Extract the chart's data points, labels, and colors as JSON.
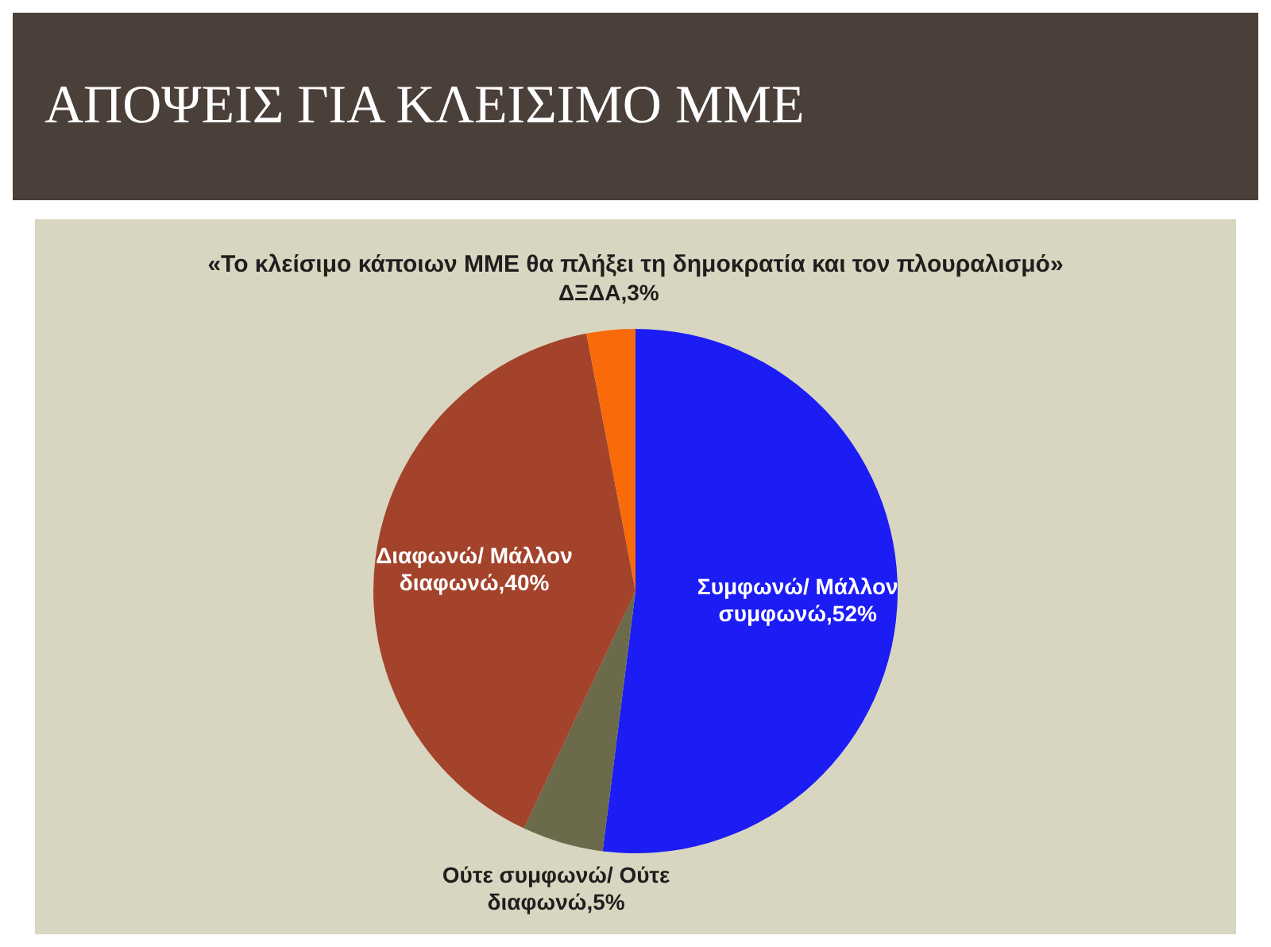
{
  "chart_data": {
    "type": "pie",
    "title": "ΑΠΟΨΕΙΣ ΓΙΑ ΚΛΕΙΣΙΜΟ ΜΜΕ",
    "subtitle": "«Το κλείσιμο κάποιων ΜΜΕ θα πλήξει τη δημοκρατία και τον πλουραλισμό»",
    "categories": [
      "Συμφωνώ/ Μάλλον συμφωνώ",
      "Ούτε συμφωνώ/ Ούτε διαφωνώ",
      "Διαφωνώ/ Μάλλον διαφωνώ",
      "ΔΞΔΑ"
    ],
    "values": [
      52,
      5,
      40,
      3
    ],
    "value_labels": [
      "52%",
      "5%",
      "40%",
      "3%"
    ],
    "colors": [
      "#1c1cf5",
      "#6b6b4c",
      "#a3432c",
      "#f86a0a"
    ],
    "legend": false
  }
}
